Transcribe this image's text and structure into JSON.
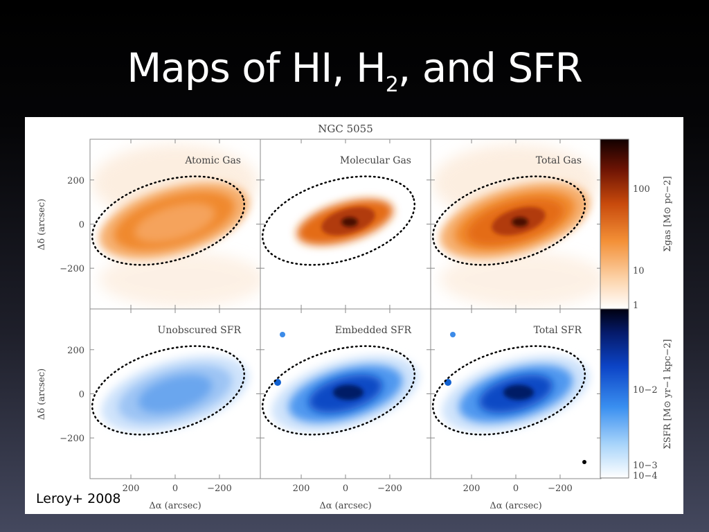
{
  "slide": {
    "title_pre": "Maps of HI, H",
    "title_sub": "2",
    "title_post": ", and SFR",
    "credit": "Leroy+ 2008"
  },
  "figure": {
    "galaxy": "NGC 5055",
    "panels": [
      {
        "label": "Atomic Gas",
        "kind": "gas"
      },
      {
        "label": "Molecular Gas",
        "kind": "gas"
      },
      {
        "label": "Total Gas",
        "kind": "gas"
      },
      {
        "label": "Unobscured SFR",
        "kind": "sfr"
      },
      {
        "label": "Embedded SFR",
        "kind": "sfr"
      },
      {
        "label": "Total SFR",
        "kind": "sfr"
      }
    ],
    "y_axis": {
      "label": "Δδ (arcsec)",
      "ticks": [
        "200",
        "0",
        "−200"
      ]
    },
    "x_axis": {
      "label": "Δα (arcsec)",
      "ticks": [
        "200",
        "0",
        "−200"
      ]
    },
    "gas_colorbar": {
      "label": "Σgas [M⊙ pc−2]",
      "ticks": [
        "100",
        "10",
        "1"
      ],
      "color": "#e8701a"
    },
    "sfr_colorbar": {
      "label": "ΣSFR [M⊙ yr−1 kpc−2]",
      "ticks": [
        "10−2",
        "10−3",
        "10−4"
      ],
      "color": "#1060d0"
    }
  }
}
